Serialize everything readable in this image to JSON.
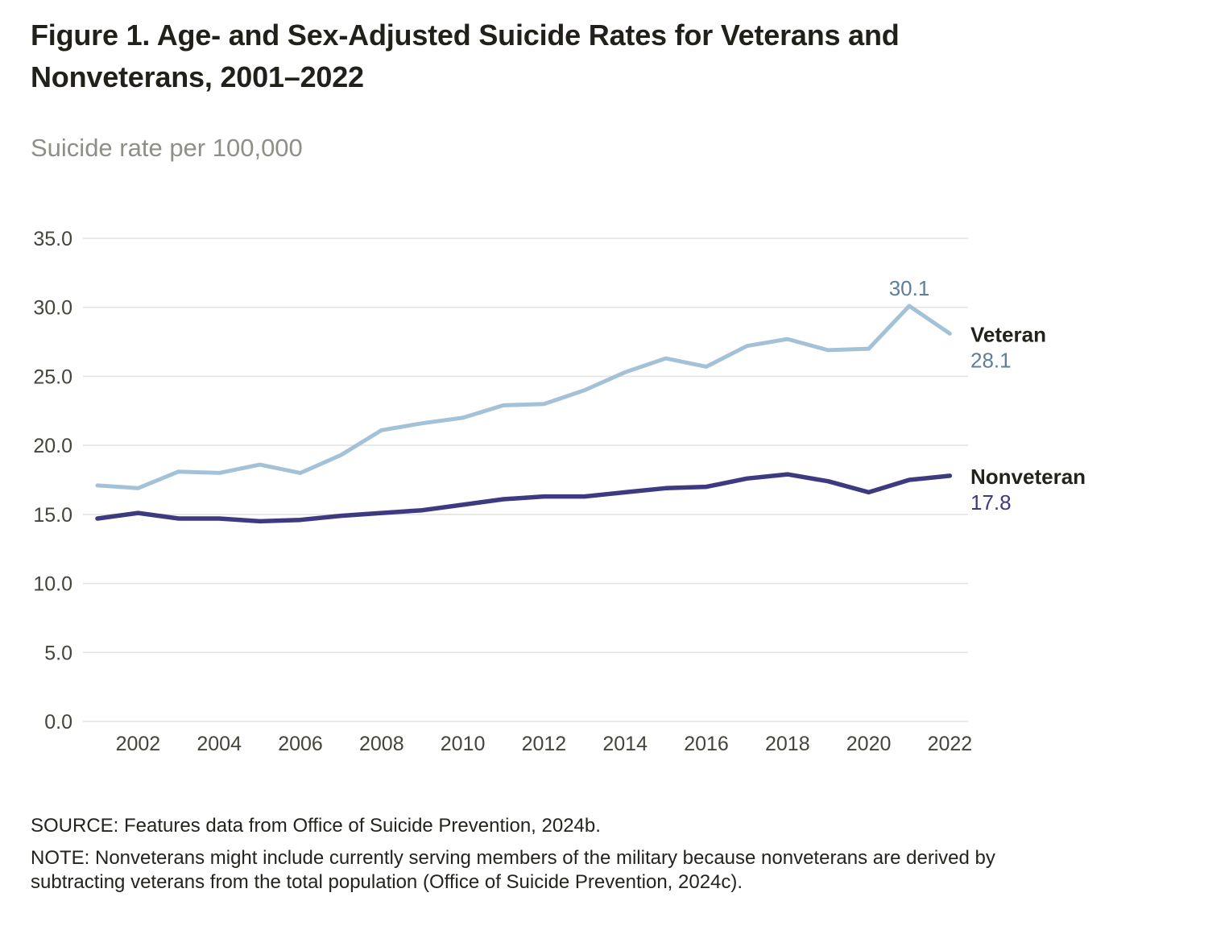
{
  "figure": {
    "title": "Figure 1. Age- and Sex-Adjusted Suicide Rates for Veterans and Nonveterans, 2001–2022",
    "subtitle": "Suicide rate per 100,000",
    "source": "SOURCE: Features data from Office of Suicide Prevention, 2024b.",
    "note": "NOTE: Nonveterans might include currently serving members of the military because nonveterans are derived by subtracting veterans from the total population (Office of Suicide Prevention, 2024c)."
  },
  "chart_data": {
    "type": "line",
    "title": "Figure 1. Age- and Sex-Adjusted Suicide Rates for Veterans and Nonveterans, 2001–2022",
    "ylabel": "Suicide rate per 100,000",
    "xlabel": "",
    "grid": true,
    "legend_position": "right-end-labels",
    "ylim": [
      0,
      35
    ],
    "ytick_step": 5,
    "ytick_format_decimals": 1,
    "x": [
      2001,
      2002,
      2003,
      2004,
      2005,
      2006,
      2007,
      2008,
      2009,
      2010,
      2011,
      2012,
      2013,
      2014,
      2015,
      2016,
      2017,
      2018,
      2019,
      2020,
      2021,
      2022
    ],
    "xticks": [
      2002,
      2004,
      2006,
      2008,
      2010,
      2012,
      2014,
      2016,
      2018,
      2020,
      2022
    ],
    "series": [
      {
        "name": "Veteran",
        "color": "#a3c1d7",
        "label_color": "#5d7f9a",
        "stroke_width": 5,
        "values": [
          17.1,
          16.9,
          18.1,
          18.0,
          18.6,
          18.0,
          19.3,
          21.1,
          21.6,
          22.0,
          22.9,
          23.0,
          24.0,
          25.3,
          26.3,
          25.7,
          27.2,
          27.7,
          26.9,
          27.0,
          30.1,
          28.1
        ],
        "end_label": {
          "name": "Veteran",
          "value": "28.1"
        }
      },
      {
        "name": "Nonveteran",
        "color": "#3e3a81",
        "label_color": "#3e3a81",
        "stroke_width": 5.5,
        "values": [
          14.7,
          15.1,
          14.7,
          14.7,
          14.5,
          14.6,
          14.9,
          15.1,
          15.3,
          15.7,
          16.1,
          16.3,
          16.3,
          16.6,
          16.9,
          17.0,
          17.6,
          17.9,
          17.4,
          16.6,
          17.5,
          17.8
        ],
        "end_label": {
          "name": "Nonveteran",
          "value": "17.8"
        }
      }
    ],
    "annotations": [
      {
        "text": "30.1",
        "year": 2021,
        "value": 30.1,
        "series": "Veteran",
        "color": "#5d7f9a"
      }
    ]
  },
  "style_colors": {
    "gridline": "#e4e4e1",
    "axis_tick_label": "#45443b",
    "series_name_label": "#23221c"
  }
}
